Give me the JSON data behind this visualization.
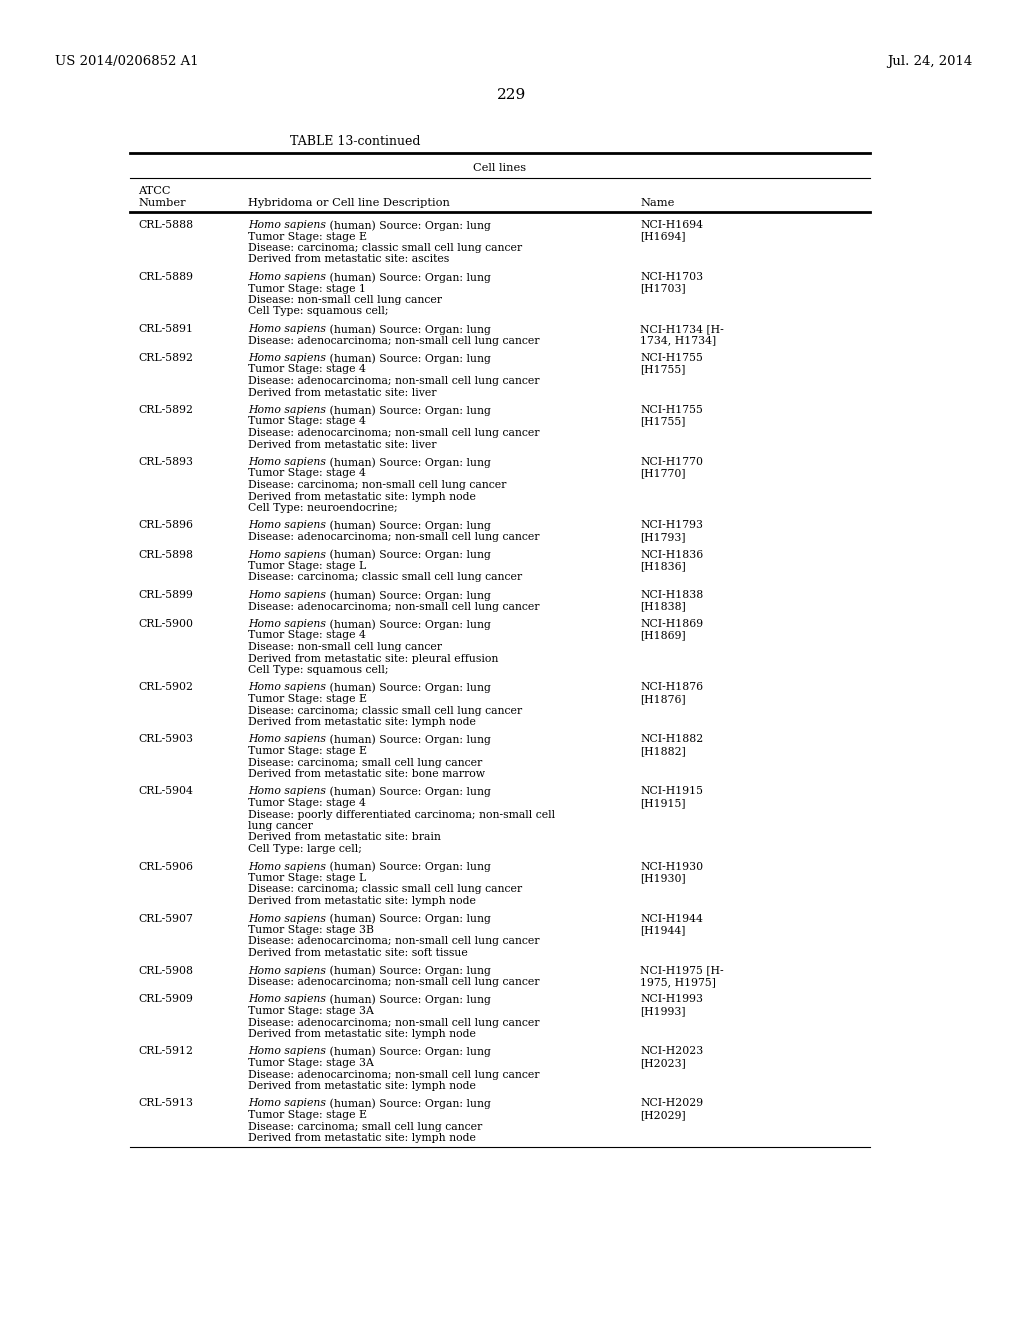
{
  "patent_left": "US 2014/0206852 A1",
  "patent_right": "Jul. 24, 2014",
  "page_number": "229",
  "table_title": "TABLE 13-continued",
  "col_header_center": "Cell lines",
  "rows": [
    {
      "atcc": "CRL-5888",
      "desc_lines": [
        {
          "italic": "Homo sapiens",
          "normal": " (human) Source: Organ: lung"
        },
        {
          "text": "Tumor Stage: stage E"
        },
        {
          "text": "Disease: carcinoma; classic small cell lung cancer"
        },
        {
          "text": "Derived from metastatic site: ascites"
        }
      ],
      "name_lines": [
        "NCI-H1694",
        "[H1694]"
      ]
    },
    {
      "atcc": "CRL-5889",
      "desc_lines": [
        {
          "italic": "Homo sapiens",
          "normal": " (human) Source: Organ: lung"
        },
        {
          "text": "Tumor Stage: stage 1"
        },
        {
          "text": "Disease: non-small cell lung cancer"
        },
        {
          "text": "Cell Type: squamous cell;"
        }
      ],
      "name_lines": [
        "NCI-H1703",
        "[H1703]"
      ]
    },
    {
      "atcc": "CRL-5891",
      "desc_lines": [
        {
          "italic": "Homo sapiens",
          "normal": " (human) Source: Organ: lung"
        },
        {
          "text": "Disease: adenocarcinoma; non-small cell lung cancer"
        }
      ],
      "name_lines": [
        "NCI-H1734 [H-",
        "1734, H1734]"
      ]
    },
    {
      "atcc": "CRL-5892",
      "desc_lines": [
        {
          "italic": "Homo sapiens",
          "normal": " (human) Source: Organ: lung"
        },
        {
          "text": "Tumor Stage: stage 4"
        },
        {
          "text": "Disease: adenocarcinoma; non-small cell lung cancer"
        },
        {
          "text": "Derived from metastatic site: liver"
        }
      ],
      "name_lines": [
        "NCI-H1755",
        "[H1755]"
      ]
    },
    {
      "atcc": "CRL-5892",
      "desc_lines": [
        {
          "italic": "Homo sapiens",
          "normal": " (human) Source: Organ: lung"
        },
        {
          "text": "Tumor Stage: stage 4"
        },
        {
          "text": "Disease: adenocarcinoma; non-small cell lung cancer"
        },
        {
          "text": "Derived from metastatic site: liver"
        }
      ],
      "name_lines": [
        "NCI-H1755",
        "[H1755]"
      ]
    },
    {
      "atcc": "CRL-5893",
      "desc_lines": [
        {
          "italic": "Homo sapiens",
          "normal": " (human) Source: Organ: lung"
        },
        {
          "text": "Tumor Stage: stage 4"
        },
        {
          "text": "Disease: carcinoma; non-small cell lung cancer"
        },
        {
          "text": "Derived from metastatic site: lymph node"
        },
        {
          "text": "Cell Type: neuroendocrine;"
        }
      ],
      "name_lines": [
        "NCI-H1770",
        "[H1770]"
      ]
    },
    {
      "atcc": "CRL-5896",
      "desc_lines": [
        {
          "italic": "Homo sapiens",
          "normal": " (human) Source: Organ: lung"
        },
        {
          "text": "Disease: adenocarcinoma; non-small cell lung cancer"
        }
      ],
      "name_lines": [
        "NCI-H1793",
        "[H1793]"
      ]
    },
    {
      "atcc": "CRL-5898",
      "desc_lines": [
        {
          "italic": "Homo sapiens",
          "normal": " (human) Source: Organ: lung"
        },
        {
          "text": "Tumor Stage: stage L"
        },
        {
          "text": "Disease: carcinoma; classic small cell lung cancer"
        }
      ],
      "name_lines": [
        "NCI-H1836",
        "[H1836]"
      ]
    },
    {
      "atcc": "CRL-5899",
      "desc_lines": [
        {
          "italic": "Homo sapiens",
          "normal": " (human) Source: Organ: lung"
        },
        {
          "text": "Disease: adenocarcinoma; non-small cell lung cancer"
        }
      ],
      "name_lines": [
        "NCI-H1838",
        "[H1838]"
      ]
    },
    {
      "atcc": "CRL-5900",
      "desc_lines": [
        {
          "italic": "Homo sapiens",
          "normal": " (human) Source: Organ: lung"
        },
        {
          "text": "Tumor Stage: stage 4"
        },
        {
          "text": "Disease: non-small cell lung cancer"
        },
        {
          "text": "Derived from metastatic site: pleural effusion"
        },
        {
          "text": "Cell Type: squamous cell;"
        }
      ],
      "name_lines": [
        "NCI-H1869",
        "[H1869]"
      ]
    },
    {
      "atcc": "CRL-5902",
      "desc_lines": [
        {
          "italic": "Homo sapiens",
          "normal": " (human) Source: Organ: lung"
        },
        {
          "text": "Tumor Stage: stage E"
        },
        {
          "text": "Disease: carcinoma; classic small cell lung cancer"
        },
        {
          "text": "Derived from metastatic site: lymph node"
        }
      ],
      "name_lines": [
        "NCI-H1876",
        "[H1876]"
      ]
    },
    {
      "atcc": "CRL-5903",
      "desc_lines": [
        {
          "italic": "Homo sapiens",
          "normal": " (human) Source: Organ: lung"
        },
        {
          "text": "Tumor Stage: stage E"
        },
        {
          "text": "Disease: carcinoma; small cell lung cancer"
        },
        {
          "text": "Derived from metastatic site: bone marrow"
        }
      ],
      "name_lines": [
        "NCI-H1882",
        "[H1882]"
      ]
    },
    {
      "atcc": "CRL-5904",
      "desc_lines": [
        {
          "italic": "Homo sapiens",
          "normal": " (human) Source: Organ: lung"
        },
        {
          "text": "Tumor Stage: stage 4"
        },
        {
          "text": "Disease: poorly differentiated carcinoma; non-small cell"
        },
        {
          "text": "lung cancer"
        },
        {
          "text": "Derived from metastatic site: brain"
        },
        {
          "text": "Cell Type: large cell;"
        }
      ],
      "name_lines": [
        "NCI-H1915",
        "[H1915]"
      ]
    },
    {
      "atcc": "CRL-5906",
      "desc_lines": [
        {
          "italic": "Homo sapiens",
          "normal": " (human) Source: Organ: lung"
        },
        {
          "text": "Tumor Stage: stage L"
        },
        {
          "text": "Disease: carcinoma; classic small cell lung cancer"
        },
        {
          "text": "Derived from metastatic site: lymph node"
        }
      ],
      "name_lines": [
        "NCI-H1930",
        "[H1930]"
      ]
    },
    {
      "atcc": "CRL-5907",
      "desc_lines": [
        {
          "italic": "Homo sapiens",
          "normal": " (human) Source: Organ: lung"
        },
        {
          "text": "Tumor Stage: stage 3B"
        },
        {
          "text": "Disease: adenocarcinoma; non-small cell lung cancer"
        },
        {
          "text": "Derived from metastatic site: soft tissue"
        }
      ],
      "name_lines": [
        "NCI-H1944",
        "[H1944]"
      ]
    },
    {
      "atcc": "CRL-5908",
      "desc_lines": [
        {
          "italic": "Homo sapiens",
          "normal": " (human) Source: Organ: lung"
        },
        {
          "text": "Disease: adenocarcinoma; non-small cell lung cancer"
        }
      ],
      "name_lines": [
        "NCI-H1975 [H-",
        "1975, H1975]"
      ]
    },
    {
      "atcc": "CRL-5909",
      "desc_lines": [
        {
          "italic": "Homo sapiens",
          "normal": " (human) Source: Organ: lung"
        },
        {
          "text": "Tumor Stage: stage 3A"
        },
        {
          "text": "Disease: adenocarcinoma; non-small cell lung cancer"
        },
        {
          "text": "Derived from metastatic site: lymph node"
        }
      ],
      "name_lines": [
        "NCI-H1993",
        "[H1993]"
      ]
    },
    {
      "atcc": "CRL-5912",
      "desc_lines": [
        {
          "italic": "Homo sapiens",
          "normal": " (human) Source: Organ: lung"
        },
        {
          "text": "Tumor Stage: stage 3A"
        },
        {
          "text": "Disease: adenocarcinoma; non-small cell lung cancer"
        },
        {
          "text": "Derived from metastatic site: lymph node"
        }
      ],
      "name_lines": [
        "NCI-H2023",
        "[H2023]"
      ]
    },
    {
      "atcc": "CRL-5913",
      "desc_lines": [
        {
          "italic": "Homo sapiens",
          "normal": " (human) Source: Organ: lung"
        },
        {
          "text": "Tumor Stage: stage E"
        },
        {
          "text": "Disease: carcinoma; small cell lung cancer"
        },
        {
          "text": "Derived from metastatic site: lymph node"
        }
      ],
      "name_lines": [
        "NCI-H2029",
        "[H2029]"
      ]
    }
  ]
}
